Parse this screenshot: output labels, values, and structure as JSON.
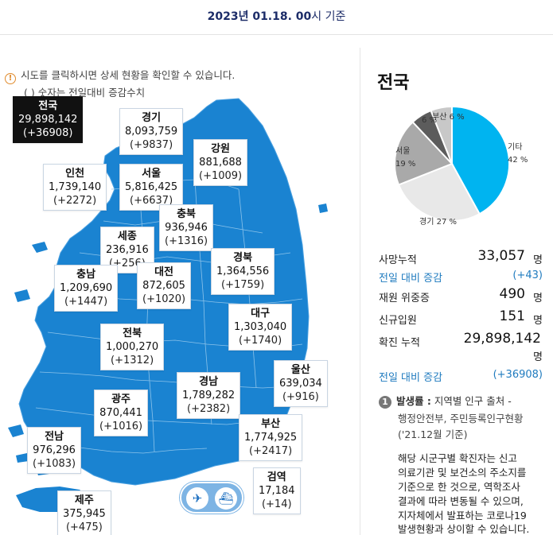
{
  "header": {
    "date": "2023년 01.18. 00",
    "suffix": "시 기준"
  },
  "notice": {
    "line1": "시도를 클릭하시면 상세 현황을 확인할 수 있습니다.",
    "line2": "( ) 숫자는 전일대비 증감수치",
    "icon": "info-circle-icon"
  },
  "colors": {
    "map_fill": "#1a83d1",
    "accent_blue": "#1f7bbf",
    "pie_etc": "#00b4f0",
    "pie_gyeonggi": "#e8e8e8",
    "pie_seoul": "#a9a9a9",
    "pie_busan": "#5c5c5c",
    "pie_gyeongnam": "#c8c8c8"
  },
  "regions": {
    "national": {
      "name": "전국",
      "value": "29,898,142",
      "delta": "(+36908)"
    },
    "gyeonggi": {
      "name": "경기",
      "value": "8,093,759",
      "delta": "(+9837)"
    },
    "gangwon": {
      "name": "강원",
      "value": "881,688",
      "delta": "(+1009)"
    },
    "incheon": {
      "name": "인천",
      "value": "1,739,140",
      "delta": "(+2272)"
    },
    "seoul": {
      "name": "서울",
      "value": "5,816,425",
      "delta": "(+6637)"
    },
    "chungbuk": {
      "name": "충북",
      "value": "936,946",
      "delta": "(+1316)"
    },
    "sejong": {
      "name": "세종",
      "value": "236,916",
      "delta": "(+256)"
    },
    "gyeongbuk": {
      "name": "경북",
      "value": "1,364,556",
      "delta": "(+1759)"
    },
    "chungnam": {
      "name": "충남",
      "value": "1,209,690",
      "delta": "(+1447)"
    },
    "daejeon": {
      "name": "대전",
      "value": "872,605",
      "delta": "(+1020)"
    },
    "daegu": {
      "name": "대구",
      "value": "1,303,040",
      "delta": "(+1740)"
    },
    "jeonbuk": {
      "name": "전북",
      "value": "1,000,270",
      "delta": "(+1312)"
    },
    "ulsan": {
      "name": "울산",
      "value": "639,034",
      "delta": "(+916)"
    },
    "gyeongnam": {
      "name": "경남",
      "value": "1,789,282",
      "delta": "(+2382)"
    },
    "gwangju": {
      "name": "광주",
      "value": "870,441",
      "delta": "(+1016)"
    },
    "busan": {
      "name": "부산",
      "value": "1,774,925",
      "delta": "(+2417)"
    },
    "jeonnam": {
      "name": "전남",
      "value": "976,296",
      "delta": "(+1083)"
    },
    "quarantine": {
      "name": "검역",
      "value": "17,184",
      "delta": "(+14)"
    },
    "jeju": {
      "name": "제주",
      "value": "375,945",
      "delta": "(+475)"
    }
  },
  "transport": {
    "plane_icon": "airplane-icon",
    "ship_icon": "ship-icon"
  },
  "panel": {
    "title": "전국",
    "pie": [
      {
        "label": "기타",
        "pct": "42 %",
        "value": 42
      },
      {
        "label": "경기",
        "pct": "27 %",
        "value": 27
      },
      {
        "label": "서울",
        "pct": "19 %",
        "value": 19
      },
      {
        "label": "",
        "pct": "6 %",
        "value": 6
      },
      {
        "label": "부산",
        "pct": "6 %",
        "value": 6
      }
    ],
    "stats": {
      "deaths": {
        "label": "사망누적",
        "value": "33,057",
        "unit": "명"
      },
      "deaths_delta": {
        "label": "전일 대비 증감",
        "value": "(+43)"
      },
      "critical": {
        "label": "재원 위중증",
        "value": "490",
        "unit": "명"
      },
      "new_adm": {
        "label": "신규입원",
        "value": "151",
        "unit": "명"
      },
      "confirmed": {
        "label": "확진 누적",
        "value": "29,898,142",
        "unit": "명"
      },
      "confirmed_delta": {
        "label": "전일 대비 증감",
        "value": "(+36908)"
      }
    },
    "note": {
      "num": "1",
      "title": "발생률 :",
      "title_rest": " 지역별 인구 출처 -",
      "l2": "행정안전부, 주민등록인구현황",
      "l3": "('21.12월 기준)",
      "b1": "해당 시군구별 확진자는 신고",
      "b2": "의료기관 및 보건소의 주소지를",
      "b3": "기준으로 한 것으로, 역학조사",
      "b4": "결과에 따라 변동될 수 있으며,",
      "b5": "지자체에서 발표하는 코로나19",
      "b6": "발생현황과 상이할 수 있습니다."
    }
  }
}
